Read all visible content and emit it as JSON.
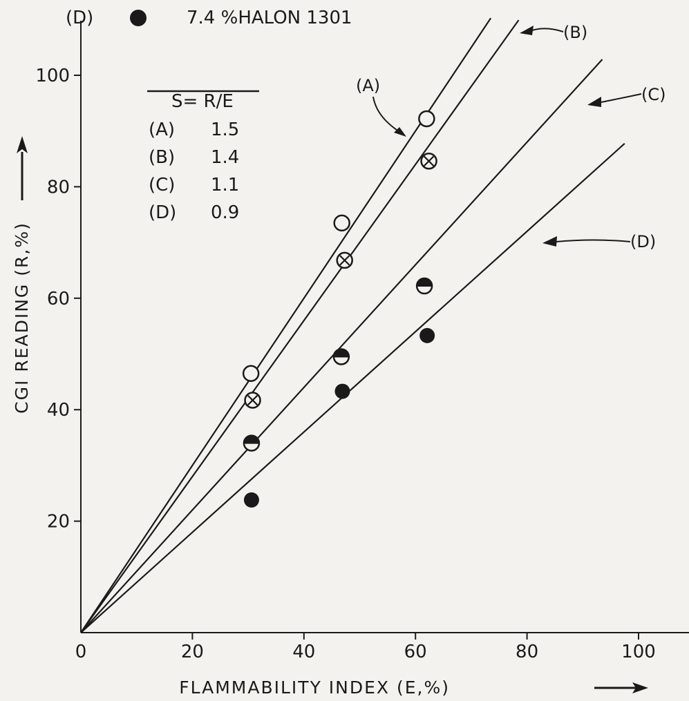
{
  "chart_data": {
    "type": "scatter",
    "xlabel": "FLAMMABILITY INDEX (E,%)",
    "ylabel": "CGI READING (R,%)",
    "xlim": [
      0,
      100
    ],
    "ylim": [
      0,
      100
    ],
    "x_ticks": [
      "0",
      "20",
      "40",
      "60",
      "80",
      "100"
    ],
    "y_ticks": [
      "20",
      "40",
      "60",
      "80",
      "100"
    ],
    "grid": false,
    "legend_header": "(D)",
    "legend_text": "7.4 %HALON 1301",
    "table_header": "S= R/E",
    "slope_table": [
      {
        "label": "(A)",
        "value": "1.5"
      },
      {
        "label": "(B)",
        "value": "1.4"
      },
      {
        "label": "(C)",
        "value": "1.1"
      },
      {
        "label": "(D)",
        "value": "0.9"
      }
    ],
    "series": [
      {
        "name": "(A)",
        "marker": "open-circle",
        "slope": 1.5,
        "line_end_x": 73.5,
        "x": [
          30.5,
          46.8,
          62.0
        ],
        "y": [
          46.5,
          73.5,
          92.2
        ]
      },
      {
        "name": "(B)",
        "marker": "circle-cross",
        "slope": 1.4,
        "line_end_x": 78.5,
        "x": [
          30.8,
          47.3,
          62.4
        ],
        "y": [
          41.7,
          66.8,
          84.6
        ]
      },
      {
        "name": "(C)",
        "marker": "half-filled-circle",
        "slope": 1.1,
        "line_end_x": 93.5,
        "x": [
          30.6,
          46.7,
          61.6
        ],
        "y": [
          34.0,
          49.5,
          62.2
        ]
      },
      {
        "name": "(D)",
        "marker": "filled-circle",
        "slope": 0.9,
        "line_end_x": 97.5,
        "x": [
          30.6,
          46.9,
          62.1
        ],
        "y": [
          23.8,
          43.3,
          53.3
        ]
      }
    ]
  }
}
